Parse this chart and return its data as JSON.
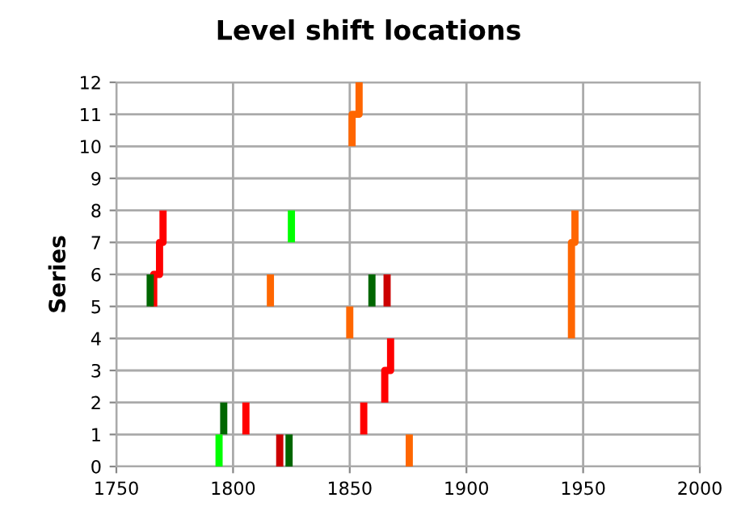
{
  "chart_data": {
    "type": "line",
    "title": "Level shift locations",
    "ylabel": "Series",
    "xlim": [
      1750,
      2000
    ],
    "xticks": [
      1750,
      1800,
      1850,
      1900,
      1950,
      2000
    ],
    "ylim": [
      0,
      12
    ],
    "yticks": [
      0,
      1,
      2,
      3,
      4,
      5,
      6,
      7,
      8,
      9,
      10,
      11,
      12
    ],
    "grid": true,
    "marker": "none",
    "line_style": "solid",
    "series": [
      {
        "color": "#ff6600",
        "x": [
          1851,
          1851,
          1854,
          1854
        ],
        "values": [
          10,
          11,
          11,
          12
        ]
      },
      {
        "color": "#ff0000",
        "x": [
          1766,
          1766,
          1768.5,
          1768.5,
          1770,
          1770
        ],
        "values": [
          5,
          6,
          6,
          7,
          7,
          8
        ]
      },
      {
        "color": "#006600",
        "x": [
          1764.5,
          1764.5
        ],
        "values": [
          5,
          6
        ]
      },
      {
        "color": "#00ff00",
        "x": [
          1825,
          1825
        ],
        "values": [
          7,
          8
        ]
      },
      {
        "color": "#ff6600",
        "x": [
          1816,
          1816
        ],
        "values": [
          5,
          6
        ]
      },
      {
        "color": "#006600",
        "x": [
          1859.5,
          1859.5
        ],
        "values": [
          5,
          6
        ]
      },
      {
        "color": "#cc0000",
        "x": [
          1866,
          1866
        ],
        "values": [
          5,
          6
        ]
      },
      {
        "color": "#ff6600",
        "x": [
          1850,
          1850
        ],
        "values": [
          4,
          5
        ]
      },
      {
        "color": "#ff0000",
        "x": [
          1865,
          1865,
          1867.5,
          1867.5
        ],
        "values": [
          2,
          3,
          3,
          4
        ]
      },
      {
        "color": "#ff0000",
        "x": [
          1856,
          1856
        ],
        "values": [
          1,
          2
        ]
      },
      {
        "color": "#ff0000",
        "x": [
          1805.5,
          1805.5
        ],
        "values": [
          1,
          2
        ]
      },
      {
        "color": "#006600",
        "x": [
          1796,
          1796
        ],
        "values": [
          1,
          2
        ]
      },
      {
        "color": "#00ff00",
        "x": [
          1794,
          1794
        ],
        "values": [
          0,
          1
        ]
      },
      {
        "color": "#cc0000",
        "x": [
          1820,
          1820
        ],
        "values": [
          0,
          1
        ]
      },
      {
        "color": "#006600",
        "x": [
          1824,
          1824
        ],
        "values": [
          0,
          1
        ]
      },
      {
        "color": "#ff6600",
        "x": [
          1875.5,
          1875.5
        ],
        "values": [
          0,
          1
        ]
      },
      {
        "color": "#ff6600",
        "x": [
          1945,
          1945,
          1946.5,
          1946.5
        ],
        "values": [
          4,
          7,
          7,
          8
        ]
      }
    ]
  }
}
